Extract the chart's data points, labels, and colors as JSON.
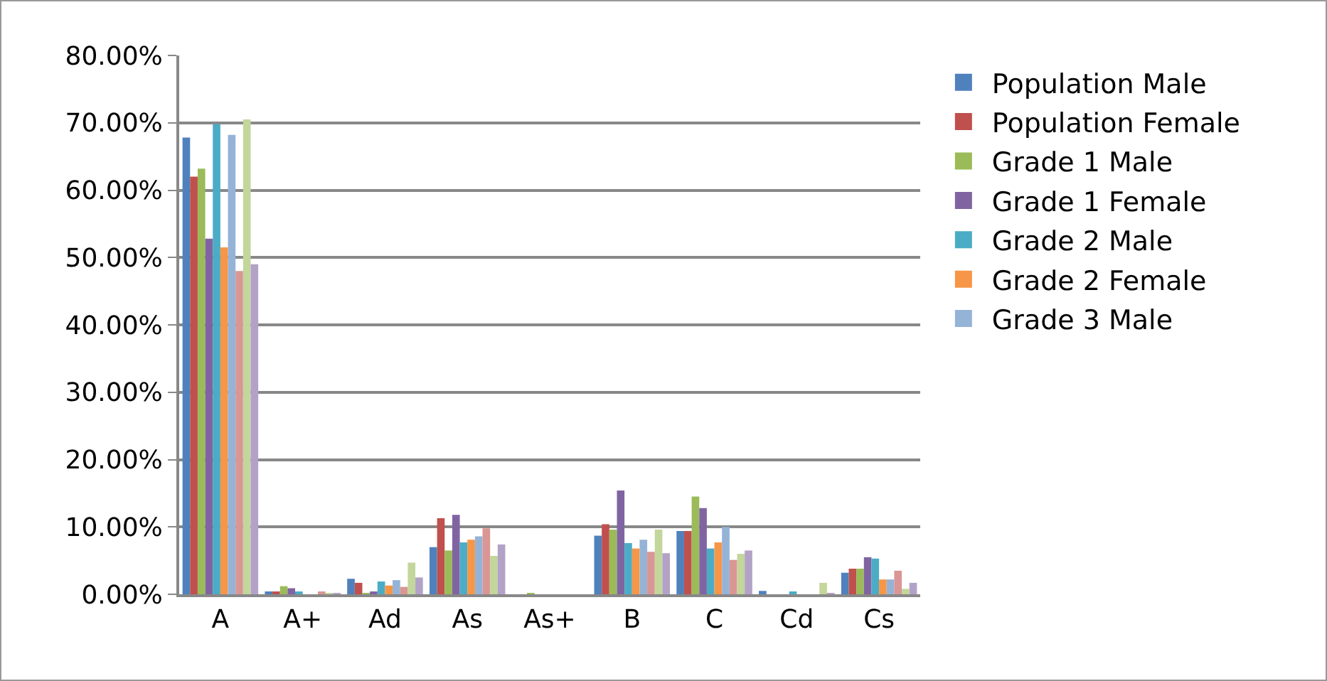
{
  "chart_data": {
    "type": "bar",
    "categories": [
      "A",
      "A+",
      "Ad",
      "As",
      "As+",
      "B",
      "C",
      "Cd",
      "Cs"
    ],
    "ylim": [
      0,
      80
    ],
    "yticks": [
      {
        "value": 0,
        "label": "0.00%"
      },
      {
        "value": 10,
        "label": "10.00%"
      },
      {
        "value": 20,
        "label": "20.00%"
      },
      {
        "value": 30,
        "label": "30.00%"
      },
      {
        "value": 40,
        "label": "40.00%"
      },
      {
        "value": 50,
        "label": "50.00%"
      },
      {
        "value": 60,
        "label": "60.00%"
      },
      {
        "value": 70,
        "label": "70.00%"
      },
      {
        "value": 80,
        "label": "80.00%"
      }
    ],
    "grid": "y",
    "legend": "right",
    "series": [
      {
        "name": "Population Male",
        "color": "#4f81bd",
        "values": [
          67.8,
          0.4,
          2.3,
          7.0,
          0,
          8.7,
          9.4,
          0.5,
          3.2
        ]
      },
      {
        "name": "Population Female",
        "color": "#c0504d",
        "values": [
          62,
          0.4,
          1.7,
          11.3,
          0,
          10.4,
          9.4,
          0,
          3.8
        ]
      },
      {
        "name": "Grade 1 Male",
        "color": "#9bbb59",
        "values": [
          63.2,
          1.2,
          0.2,
          6.5,
          0.2,
          9.6,
          14.5,
          0,
          3.8
        ]
      },
      {
        "name": "Grade 1 Female",
        "color": "#8064a2",
        "values": [
          52.8,
          0.9,
          0.4,
          11.8,
          0,
          15.4,
          12.8,
          0,
          5.5
        ]
      },
      {
        "name": "Grade 2 Male",
        "color": "#4bacc6",
        "values": [
          69.8,
          0.4,
          1.9,
          7.7,
          0,
          7.6,
          6.8,
          0.4,
          5.3
        ]
      },
      {
        "name": "Grade 2 Female",
        "color": "#f79646",
        "values": [
          51.5,
          0,
          1.3,
          8.1,
          0,
          6.8,
          7.7,
          0,
          2.2
        ]
      },
      {
        "name": "Grade 3 Male",
        "color": "#95b3d7",
        "values": [
          68.2,
          0,
          2.1,
          8.6,
          0,
          8.1,
          10.0,
          0,
          2.2
        ]
      },
      {
        "color": "#da9694",
        "values": [
          48,
          0.4,
          1.1,
          9.8,
          0,
          6.3,
          5.1,
          0,
          3.5
        ]
      },
      {
        "color": "#c3d69b",
        "values": [
          70.5,
          0.2,
          4.7,
          5.7,
          0,
          9.6,
          6.0,
          1.7,
          0.8
        ]
      },
      {
        "color": "#b3a2c7",
        "values": [
          49,
          0.2,
          2.5,
          7.4,
          0,
          6.1,
          6.5,
          0.2,
          1.7
        ]
      }
    ]
  }
}
